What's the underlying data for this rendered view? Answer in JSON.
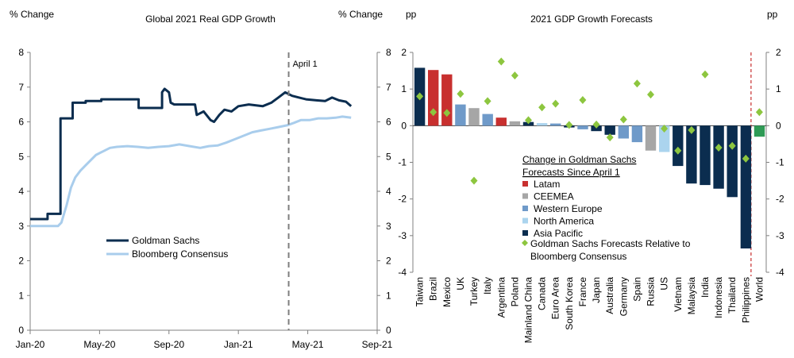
{
  "chart_data": [
    {
      "type": "line",
      "title": "Global 2021 Real GDP Growth",
      "ylabel_left": "% Change",
      "ylabel_right": "% Change",
      "ylim": [
        0,
        8
      ],
      "yticks": [
        "0",
        "1",
        "2",
        "3",
        "4",
        "5",
        "6",
        "7",
        "8"
      ],
      "xticks": [
        "Jan-20",
        "May-20",
        "Sep-20",
        "Jan-21",
        "May-21",
        "Sep-21"
      ],
      "annotation": {
        "label": "April 1",
        "x": 14.9
      },
      "legend": {
        "placement": "bottom-left"
      },
      "series": [
        {
          "name": "Goldman Sachs",
          "color": "#0b2d4f",
          "step": true,
          "points": [
            [
              0,
              3.2
            ],
            [
              1.0,
              3.2
            ],
            [
              1.0,
              3.35
            ],
            [
              1.75,
              3.35
            ],
            [
              1.75,
              6.1
            ],
            [
              2.45,
              6.1
            ],
            [
              2.45,
              6.55
            ],
            [
              3.2,
              6.55
            ],
            [
              3.2,
              6.6
            ],
            [
              4.1,
              6.6
            ],
            [
              4.1,
              6.65
            ],
            [
              6.25,
              6.65
            ],
            [
              6.25,
              6.4
            ],
            [
              7.6,
              6.4
            ],
            [
              7.6,
              6.85
            ],
            [
              7.75,
              6.95
            ],
            [
              8.0,
              6.85
            ],
            [
              8.1,
              6.55
            ],
            [
              8.3,
              6.5
            ],
            [
              9.5,
              6.5
            ],
            [
              9.6,
              6.2
            ],
            [
              10.0,
              6.3
            ],
            [
              10.4,
              6.05
            ],
            [
              10.6,
              6.0
            ],
            [
              10.9,
              6.2
            ],
            [
              11.2,
              6.35
            ],
            [
              11.6,
              6.3
            ],
            [
              12.0,
              6.45
            ],
            [
              12.6,
              6.5
            ],
            [
              13.4,
              6.45
            ],
            [
              13.9,
              6.55
            ],
            [
              14.3,
              6.7
            ],
            [
              14.7,
              6.85
            ],
            [
              15.1,
              6.75
            ],
            [
              15.5,
              6.7
            ],
            [
              15.9,
              6.65
            ],
            [
              16.5,
              6.62
            ],
            [
              17.0,
              6.6
            ],
            [
              17.4,
              6.7
            ],
            [
              17.8,
              6.62
            ],
            [
              18.2,
              6.58
            ],
            [
              18.5,
              6.45
            ]
          ]
        },
        {
          "name": "Bloomberg Consensus",
          "color": "#a9cdec",
          "step": false,
          "points": [
            [
              0,
              3.0
            ],
            [
              1.6,
              3.0
            ],
            [
              1.8,
              3.1
            ],
            [
              2.1,
              3.6
            ],
            [
              2.35,
              4.1
            ],
            [
              2.6,
              4.4
            ],
            [
              2.9,
              4.6
            ],
            [
              3.2,
              4.75
            ],
            [
              3.5,
              4.9
            ],
            [
              3.8,
              5.05
            ],
            [
              4.2,
              5.15
            ],
            [
              4.6,
              5.25
            ],
            [
              5.0,
              5.28
            ],
            [
              5.6,
              5.3
            ],
            [
              6.2,
              5.28
            ],
            [
              6.8,
              5.25
            ],
            [
              7.4,
              5.28
            ],
            [
              8.0,
              5.3
            ],
            [
              8.6,
              5.35
            ],
            [
              9.2,
              5.3
            ],
            [
              9.8,
              5.25
            ],
            [
              10.3,
              5.3
            ],
            [
              10.8,
              5.32
            ],
            [
              11.3,
              5.4
            ],
            [
              11.8,
              5.5
            ],
            [
              12.3,
              5.6
            ],
            [
              12.8,
              5.7
            ],
            [
              13.3,
              5.75
            ],
            [
              13.8,
              5.8
            ],
            [
              14.3,
              5.85
            ],
            [
              14.8,
              5.9
            ],
            [
              15.2,
              5.97
            ],
            [
              15.6,
              6.05
            ],
            [
              16.1,
              6.05
            ],
            [
              16.6,
              6.1
            ],
            [
              17.1,
              6.1
            ],
            [
              17.6,
              6.12
            ],
            [
              18.0,
              6.15
            ],
            [
              18.5,
              6.12
            ]
          ]
        }
      ]
    },
    {
      "type": "bar",
      "title": "2021 GDP Growth Forecasts",
      "ylabel_left": "pp",
      "ylabel_right": "pp",
      "ylim": [
        -4,
        2
      ],
      "yticks": [
        "-4",
        "-3",
        "-2",
        "-1",
        "0",
        "1",
        "2"
      ],
      "legend": {
        "placement": "middle",
        "title_line1": "Change in Goldman Sachs",
        "title_line2": "Forecasts Since April 1"
      },
      "regions": [
        {
          "name": "Latam",
          "color": "#c8302f"
        },
        {
          "name": "CEEMEA",
          "color": "#a6a6a6"
        },
        {
          "name": "Western Europe",
          "color": "#6f9ac9"
        },
        {
          "name": "North America",
          "color": "#abd4ee"
        },
        {
          "name": "Asia Pacific",
          "color": "#0b2d4f"
        }
      ],
      "diamond_series": {
        "name": "Goldman Sachs Forecasts Relative to",
        "name_line2": "Bloomberg Consensus",
        "color": "#8dc63f"
      },
      "categories": [
        "Taiwan",
        "Brazil",
        "Mexico",
        "UK",
        "Turkey",
        "Italy",
        "Argentina",
        "Poland",
        "Mainland China",
        "Canada",
        "Euro Area",
        "South Korea",
        "France",
        "Japan",
        "Australia",
        "Germany",
        "Spain",
        "Russia",
        "US",
        "Vietnam",
        "Malaysia",
        "India",
        "Indonesia",
        "Thailand",
        "Philippines",
        "World"
      ],
      "category_region": [
        "Asia Pacific",
        "Latam",
        "Latam",
        "Western Europe",
        "CEEMEA",
        "Western Europe",
        "Latam",
        "CEEMEA",
        "Asia Pacific",
        "North America",
        "Western Europe",
        "Asia Pacific",
        "Western Europe",
        "Asia Pacific",
        "Asia Pacific",
        "Western Europe",
        "Western Europe",
        "CEEMEA",
        "North America",
        "Asia Pacific",
        "Asia Pacific",
        "Asia Pacific",
        "Asia Pacific",
        "Asia Pacific",
        "Asia Pacific",
        "World"
      ],
      "world_color": "#2e9a55",
      "values": [
        1.58,
        1.52,
        1.4,
        0.58,
        0.48,
        0.32,
        0.22,
        0.12,
        0.1,
        0.07,
        0.06,
        -0.05,
        -0.1,
        -0.15,
        -0.25,
        -0.35,
        -0.45,
        -0.68,
        -0.72,
        -1.1,
        -1.58,
        -1.62,
        -1.72,
        -1.95,
        -3.35,
        -0.3
      ],
      "diamonds": [
        0.8,
        0.37,
        0.35,
        0.87,
        -1.5,
        0.67,
        1.75,
        1.37,
        0.15,
        0.5,
        0.6,
        0.02,
        0.7,
        0.03,
        -0.32,
        0.17,
        1.15,
        0.85,
        -0.08,
        -0.68,
        -0.12,
        1.4,
        -0.6,
        -0.55,
        -0.9,
        0.37
      ]
    }
  ]
}
